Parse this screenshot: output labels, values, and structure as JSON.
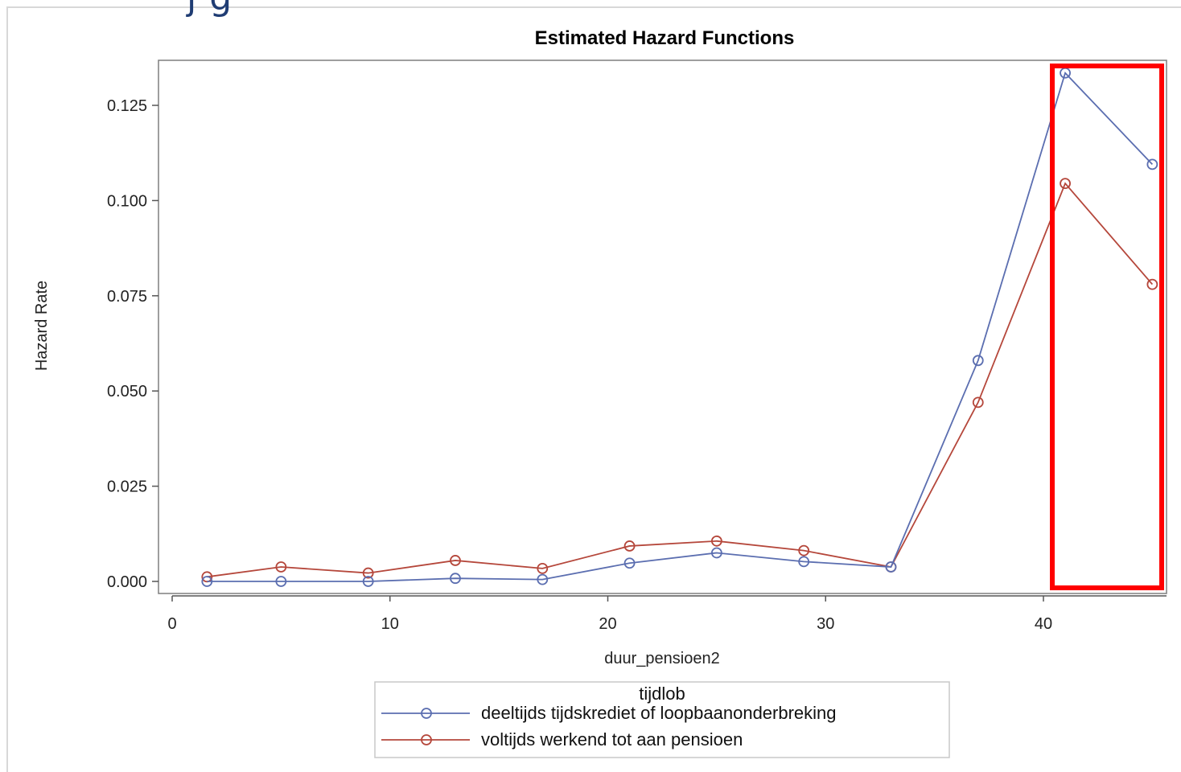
{
  "header": {
    "cropped_text": "j g"
  },
  "chart_data": {
    "type": "line",
    "title": "Estimated Hazard Functions",
    "xlabel": "duur_pensioen2",
    "ylabel": "Hazard Rate",
    "xlim": [
      0,
      46
    ],
    "ylim": [
      0.0,
      0.137
    ],
    "x_ticks": [
      "0",
      "10",
      "20",
      "30",
      "40"
    ],
    "y_ticks": [
      "0.000",
      "0.025",
      "0.050",
      "0.075",
      "0.100",
      "0.125"
    ],
    "x": [
      1.6,
      5,
      9,
      13,
      17,
      21,
      25,
      29,
      33,
      37,
      41,
      45
    ],
    "series": [
      {
        "name": "deeltijds tijdskrediet of loopbaanonderbreking",
        "color": "#5b6eb0",
        "values": [
          0.0,
          0.0,
          0.0,
          0.0008,
          0.0005,
          0.0048,
          0.0075,
          0.0052,
          0.0038,
          0.058,
          0.1335,
          0.1095
        ]
      },
      {
        "name": "voltijds werkend tot aan pensioen",
        "color": "#b5473b",
        "values": [
          0.0012,
          0.0038,
          0.0022,
          0.0055,
          0.0034,
          0.0093,
          0.0106,
          0.0081,
          0.0038,
          0.047,
          0.1045,
          0.078
        ]
      }
    ],
    "legend": {
      "title": "tijdlob",
      "position": "bottom"
    },
    "grid": false,
    "highlight_color": "#ff0000"
  }
}
